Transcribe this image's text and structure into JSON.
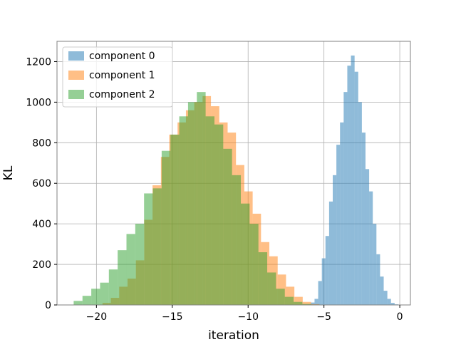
{
  "chart_data": {
    "type": "histogram",
    "title": "",
    "xlabel": "iteration",
    "ylabel": "KL",
    "xlim": [
      -22.6,
      0.7
    ],
    "ylim": [
      0,
      1300
    ],
    "xticks": [
      -20,
      -15,
      -10,
      -5,
      0
    ],
    "xtick_labels": [
      "−20",
      "−15",
      "−10",
      "−5",
      "0"
    ],
    "yticks": [
      0,
      200,
      400,
      600,
      800,
      1000,
      1200
    ],
    "ytick_labels": [
      "0",
      "200",
      "400",
      "600",
      "800",
      "1000",
      "1200"
    ],
    "grid": true,
    "legend_position": "top-left",
    "opacity": 0.5,
    "series": [
      {
        "name": "component 0",
        "color": "#1f77b4",
        "bins_start": -6.1,
        "bin_width": 0.24,
        "values": [
          2,
          12,
          30,
          118,
          230,
          340,
          510,
          640,
          790,
          900,
          1050,
          1180,
          1230,
          1150,
          1000,
          850,
          670,
          560,
          400,
          250,
          140,
          70,
          30,
          10,
          3
        ]
      },
      {
        "name": "component 1",
        "color": "#ff7f0e",
        "bins_start": -19.6,
        "bin_width": 0.55,
        "values": [
          10,
          35,
          90,
          130,
          220,
          420,
          590,
          730,
          840,
          900,
          960,
          1000,
          1030,
          980,
          900,
          850,
          690,
          560,
          450,
          310,
          240,
          150,
          90,
          40,
          15,
          4
        ]
      },
      {
        "name": "component 2",
        "color": "#2ca02c",
        "bins_start": -21.5,
        "bin_width": 0.58,
        "values": [
          20,
          45,
          80,
          110,
          175,
          270,
          350,
          400,
          550,
          575,
          760,
          840,
          930,
          1000,
          1050,
          930,
          890,
          770,
          640,
          500,
          400,
          260,
          160,
          80,
          40,
          15,
          5,
          2
        ]
      }
    ]
  }
}
